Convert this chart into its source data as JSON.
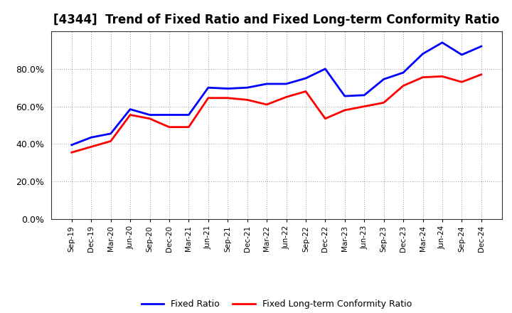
{
  "title": "[4344]  Trend of Fixed Ratio and Fixed Long-term Conformity Ratio",
  "x_labels": [
    "Sep-19",
    "Dec-19",
    "Mar-20",
    "Jun-20",
    "Sep-20",
    "Dec-20",
    "Mar-21",
    "Jun-21",
    "Sep-21",
    "Dec-21",
    "Mar-22",
    "Jun-22",
    "Sep-22",
    "Dec-22",
    "Mar-23",
    "Jun-23",
    "Sep-23",
    "Dec-23",
    "Mar-24",
    "Jun-24",
    "Sep-24",
    "Dec-24"
  ],
  "fixed_ratio": [
    0.395,
    0.435,
    0.455,
    0.585,
    0.555,
    0.555,
    0.555,
    0.7,
    0.695,
    0.7,
    0.72,
    0.72,
    0.75,
    0.8,
    0.655,
    0.66,
    0.745,
    0.78,
    0.88,
    0.94,
    0.875,
    0.92
  ],
  "fixed_lt_ratio": [
    0.355,
    0.385,
    0.415,
    0.555,
    0.535,
    0.49,
    0.49,
    0.645,
    0.645,
    0.635,
    0.61,
    0.65,
    0.68,
    0.535,
    0.58,
    0.6,
    0.62,
    0.71,
    0.755,
    0.76,
    0.73,
    0.77
  ],
  "fixed_ratio_color": "#0000FF",
  "fixed_lt_ratio_color": "#FF0000",
  "ylim": [
    0.0,
    1.0
  ],
  "yticks": [
    0.0,
    0.2,
    0.4,
    0.6,
    0.8
  ],
  "background_color": "#ffffff",
  "plot_bg_color": "#ffffff",
  "grid_color": "#999999",
  "legend_fixed": "Fixed Ratio",
  "legend_lt": "Fixed Long-term Conformity Ratio",
  "line_width": 2.0,
  "title_fontsize": 12
}
